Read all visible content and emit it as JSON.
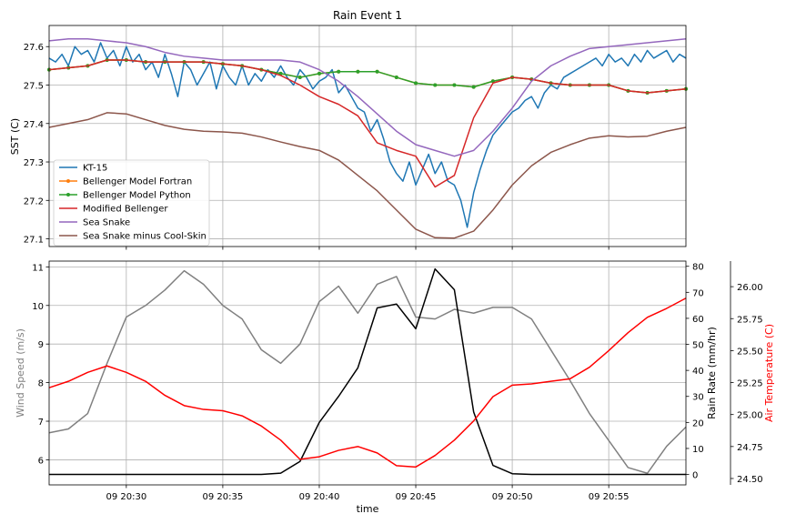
{
  "chart_data": [
    {
      "type": "line",
      "title": "Rain Event 1",
      "xlabel": "",
      "ylabel": "SST (C)",
      "xlim": [
        "20:26:00",
        "20:59:00"
      ],
      "ylim": [
        27.08,
        27.655
      ],
      "xticks": [
        "09 20:30",
        "09 20:35",
        "09 20:40",
        "09 20:45",
        "09 20:50",
        "09 20:55"
      ],
      "yticks": [
        "27.1",
        "27.2",
        "27.3",
        "27.4",
        "27.5",
        "27.6"
      ],
      "grid": true,
      "legend": "lower-left",
      "series": [
        {
          "name": "KT-15",
          "color": "#1f77b4",
          "x": [
            "20:26:00",
            "20:26:20",
            "20:26:40",
            "20:27:00",
            "20:27:20",
            "20:27:40",
            "20:28:00",
            "20:28:20",
            "20:28:40",
            "20:29:00",
            "20:29:20",
            "20:29:40",
            "20:30:00",
            "20:30:20",
            "20:30:40",
            "20:31:00",
            "20:31:20",
            "20:31:40",
            "20:32:00",
            "20:32:20",
            "20:32:40",
            "20:33:00",
            "20:33:20",
            "20:33:40",
            "20:34:00",
            "20:34:20",
            "20:34:40",
            "20:35:00",
            "20:35:20",
            "20:35:40",
            "20:36:00",
            "20:36:20",
            "20:36:40",
            "20:37:00",
            "20:37:20",
            "20:37:40",
            "20:38:00",
            "20:38:20",
            "20:38:40",
            "20:39:00",
            "20:39:20",
            "20:39:40",
            "20:40:00",
            "20:40:20",
            "20:40:40",
            "20:41:00",
            "20:41:20",
            "20:41:40",
            "20:42:00",
            "20:42:20",
            "20:42:40",
            "20:43:00",
            "20:43:20",
            "20:43:40",
            "20:44:00",
            "20:44:20",
            "20:44:40",
            "20:45:00",
            "20:45:20",
            "20:45:40",
            "20:46:00",
            "20:46:20",
            "20:46:40",
            "20:47:00",
            "20:47:20",
            "20:47:40",
            "20:48:00",
            "20:48:20",
            "20:48:40",
            "20:49:00",
            "20:49:20",
            "20:49:40",
            "20:50:00",
            "20:50:20",
            "20:50:40",
            "20:51:00",
            "20:51:20",
            "20:51:40",
            "20:52:00",
            "20:52:20",
            "20:52:40",
            "20:53:00",
            "20:53:20",
            "20:53:40",
            "20:54:00",
            "20:54:20",
            "20:54:40",
            "20:55:00",
            "20:55:20",
            "20:55:40",
            "20:56:00",
            "20:56:20",
            "20:56:40",
            "20:57:00",
            "20:57:20",
            "20:57:40",
            "20:58:00",
            "20:58:20",
            "20:58:40",
            "20:59:00"
          ],
          "values": [
            27.57,
            27.56,
            27.58,
            27.55,
            27.6,
            27.58,
            27.59,
            27.56,
            27.61,
            27.57,
            27.59,
            27.55,
            27.6,
            27.56,
            27.58,
            27.54,
            27.56,
            27.52,
            27.58,
            27.53,
            27.47,
            27.56,
            27.54,
            27.5,
            27.53,
            27.56,
            27.49,
            27.55,
            27.52,
            27.5,
            27.55,
            27.5,
            27.53,
            27.51,
            27.54,
            27.52,
            27.55,
            27.52,
            27.5,
            27.54,
            27.52,
            27.49,
            27.51,
            27.52,
            27.54,
            27.48,
            27.5,
            27.47,
            27.44,
            27.43,
            27.38,
            27.41,
            27.36,
            27.3,
            27.27,
            27.25,
            27.3,
            27.24,
            27.28,
            27.32,
            27.27,
            27.3,
            27.25,
            27.24,
            27.2,
            27.13,
            27.22,
            27.28,
            27.33,
            27.37,
            27.39,
            27.41,
            27.43,
            27.44,
            27.46,
            27.47,
            27.44,
            27.48,
            27.5,
            27.49,
            27.52,
            27.53,
            27.54,
            27.55,
            27.56,
            27.57,
            27.55,
            27.58,
            27.56,
            27.57,
            27.55,
            27.58,
            27.56,
            27.59,
            27.57,
            27.58,
            27.59,
            27.56,
            27.58,
            27.57
          ],
          "marker": false
        },
        {
          "name": "Bellenger Model Fortran",
          "color": "#ff7f0e",
          "x": [
            "20:26:00",
            "20:27:00",
            "20:28:00",
            "20:29:00",
            "20:30:00",
            "20:31:00",
            "20:32:00",
            "20:33:00",
            "20:34:00",
            "20:35:00",
            "20:36:00",
            "20:37:00",
            "20:38:00",
            "20:39:00",
            "20:40:00",
            "20:41:00",
            "20:42:00",
            "20:43:00",
            "20:44:00",
            "20:45:00",
            "20:46:00",
            "20:47:00",
            "20:48:00",
            "20:49:00",
            "20:50:00",
            "20:51:00",
            "20:52:00",
            "20:53:00",
            "20:54:00",
            "20:55:00",
            "20:56:00",
            "20:57:00",
            "20:58:00",
            "20:59:00"
          ],
          "values": [
            27.54,
            27.545,
            27.55,
            27.565,
            27.565,
            27.56,
            27.56,
            27.56,
            27.56,
            27.555,
            27.55,
            27.54,
            27.53,
            27.52,
            27.53,
            27.535,
            27.535,
            27.535,
            27.52,
            27.505,
            27.5,
            27.5,
            27.495,
            27.51,
            27.52,
            27.515,
            27.505,
            27.5,
            27.5,
            27.5,
            27.485,
            27.48,
            27.485,
            27.49
          ],
          "marker": true
        },
        {
          "name": "Bellenger Model Python",
          "color": "#2ca02c",
          "x": [
            "20:26:00",
            "20:27:00",
            "20:28:00",
            "20:29:00",
            "20:30:00",
            "20:31:00",
            "20:32:00",
            "20:33:00",
            "20:34:00",
            "20:35:00",
            "20:36:00",
            "20:37:00",
            "20:38:00",
            "20:39:00",
            "20:40:00",
            "20:41:00",
            "20:42:00",
            "20:43:00",
            "20:44:00",
            "20:45:00",
            "20:46:00",
            "20:47:00",
            "20:48:00",
            "20:49:00",
            "20:50:00",
            "20:51:00",
            "20:52:00",
            "20:53:00",
            "20:54:00",
            "20:55:00",
            "20:56:00",
            "20:57:00",
            "20:58:00",
            "20:59:00"
          ],
          "values": [
            27.54,
            27.545,
            27.55,
            27.565,
            27.565,
            27.56,
            27.56,
            27.56,
            27.56,
            27.555,
            27.55,
            27.54,
            27.53,
            27.52,
            27.53,
            27.535,
            27.535,
            27.535,
            27.52,
            27.505,
            27.5,
            27.5,
            27.495,
            27.51,
            27.52,
            27.515,
            27.505,
            27.5,
            27.5,
            27.5,
            27.485,
            27.48,
            27.485,
            27.49
          ],
          "marker": true
        },
        {
          "name": "Modified Bellenger",
          "color": "#d62728",
          "x": [
            "20:26:00",
            "20:27:00",
            "20:28:00",
            "20:29:00",
            "20:30:00",
            "20:31:00",
            "20:32:00",
            "20:33:00",
            "20:34:00",
            "20:35:00",
            "20:36:00",
            "20:37:00",
            "20:38:00",
            "20:39:00",
            "20:40:00",
            "20:41:00",
            "20:42:00",
            "20:43:00",
            "20:44:00",
            "20:45:00",
            "20:46:00",
            "20:47:00",
            "20:48:00",
            "20:49:00",
            "20:50:00",
            "20:51:00",
            "20:52:00",
            "20:53:00",
            "20:54:00",
            "20:55:00",
            "20:56:00",
            "20:57:00",
            "20:58:00",
            "20:59:00"
          ],
          "values": [
            27.54,
            27.545,
            27.55,
            27.565,
            27.565,
            27.56,
            27.56,
            27.56,
            27.56,
            27.555,
            27.55,
            27.54,
            27.525,
            27.5,
            27.47,
            27.45,
            27.42,
            27.35,
            27.33,
            27.315,
            27.235,
            27.265,
            27.415,
            27.505,
            27.52,
            27.515,
            27.505,
            27.5,
            27.5,
            27.5,
            27.485,
            27.48,
            27.485,
            27.49
          ],
          "marker": false
        },
        {
          "name": "Sea Snake",
          "color": "#9467bd",
          "x": [
            "20:26:00",
            "20:27:00",
            "20:28:00",
            "20:29:00",
            "20:30:00",
            "20:31:00",
            "20:32:00",
            "20:33:00",
            "20:34:00",
            "20:35:00",
            "20:36:00",
            "20:37:00",
            "20:38:00",
            "20:39:00",
            "20:40:00",
            "20:41:00",
            "20:42:00",
            "20:43:00",
            "20:44:00",
            "20:45:00",
            "20:46:00",
            "20:47:00",
            "20:48:00",
            "20:49:00",
            "20:50:00",
            "20:51:00",
            "20:52:00",
            "20:53:00",
            "20:54:00",
            "20:55:00",
            "20:56:00",
            "20:57:00",
            "20:58:00",
            "20:59:00"
          ],
          "values": [
            27.615,
            27.62,
            27.62,
            27.615,
            27.61,
            27.6,
            27.585,
            27.575,
            27.57,
            27.565,
            27.565,
            27.565,
            27.565,
            27.56,
            27.54,
            27.51,
            27.47,
            27.425,
            27.38,
            27.345,
            27.33,
            27.315,
            27.33,
            27.38,
            27.44,
            27.51,
            27.55,
            27.575,
            27.595,
            27.6,
            27.605,
            27.61,
            27.615,
            27.62
          ],
          "marker": false
        },
        {
          "name": "Sea Snake minus Cool-Skin",
          "color": "#8c564b",
          "x": [
            "20:26:00",
            "20:27:00",
            "20:28:00",
            "20:29:00",
            "20:30:00",
            "20:31:00",
            "20:32:00",
            "20:33:00",
            "20:34:00",
            "20:35:00",
            "20:36:00",
            "20:37:00",
            "20:38:00",
            "20:39:00",
            "20:40:00",
            "20:41:00",
            "20:42:00",
            "20:43:00",
            "20:44:00",
            "20:45:00",
            "20:46:00",
            "20:47:00",
            "20:48:00",
            "20:49:00",
            "20:50:00",
            "20:51:00",
            "20:52:00",
            "20:53:00",
            "20:54:00",
            "20:55:00",
            "20:56:00",
            "20:57:00",
            "20:58:00",
            "20:59:00"
          ],
          "values": [
            27.39,
            27.4,
            27.41,
            27.428,
            27.425,
            27.41,
            27.395,
            27.385,
            27.38,
            27.378,
            27.375,
            27.365,
            27.352,
            27.34,
            27.33,
            27.305,
            27.265,
            27.225,
            27.175,
            27.125,
            27.103,
            27.102,
            27.12,
            27.175,
            27.24,
            27.29,
            27.325,
            27.345,
            27.362,
            27.368,
            27.365,
            27.367,
            27.38,
            27.39
          ],
          "marker": false
        }
      ]
    },
    {
      "type": "line",
      "title": "",
      "xlabel": "time",
      "xlim": [
        "20:26:00",
        "20:59:00"
      ],
      "xticks": [
        "09 20:30",
        "09 20:35",
        "09 20:40",
        "09 20:45",
        "09 20:50",
        "09 20:55"
      ],
      "grid": true,
      "axes": [
        {
          "ylabel": "Wind Speed (m/s)",
          "color": "#808080",
          "side": "left",
          "ylim": [
            5.35,
            11.15
          ],
          "yticks": [
            "6",
            "7",
            "8",
            "9",
            "10",
            "11"
          ],
          "series": {
            "name": "Wind Speed (m/s)",
            "x": [
              "20:26:00",
              "20:27:00",
              "20:28:00",
              "20:29:00",
              "20:30:00",
              "20:31:00",
              "20:32:00",
              "20:33:00",
              "20:34:00",
              "20:35:00",
              "20:36:00",
              "20:37:00",
              "20:38:00",
              "20:39:00",
              "20:40:00",
              "20:41:00",
              "20:42:00",
              "20:43:00",
              "20:44:00",
              "20:45:00",
              "20:46:00",
              "20:47:00",
              "20:48:00",
              "20:49:00",
              "20:50:00",
              "20:51:00",
              "20:52:00",
              "20:53:00",
              "20:54:00",
              "20:55:00",
              "20:56:00",
              "20:57:00",
              "20:58:00",
              "20:59:00"
            ],
            "values": [
              6.7,
              6.8,
              7.2,
              8.5,
              9.7,
              10.0,
              10.4,
              10.9,
              10.55,
              10.0,
              9.65,
              8.85,
              8.5,
              9.0,
              10.1,
              10.5,
              9.8,
              10.55,
              10.75,
              9.7,
              9.65,
              9.9,
              9.8,
              9.95,
              9.95,
              9.65,
              8.85,
              8.05,
              7.2,
              6.5,
              5.8,
              5.65,
              6.35,
              6.85
            ]
          }
        },
        {
          "ylabel": "Rain Rate (mm/hr)",
          "color": "#000000",
          "side": "right",
          "ylim": [
            -4,
            82
          ],
          "yticks": [
            "0",
            "10",
            "20",
            "30",
            "40",
            "50",
            "60",
            "70",
            "80"
          ],
          "series": {
            "name": "Rain Rate (mm/hr)",
            "x": [
              "20:26:00",
              "20:27:00",
              "20:28:00",
              "20:29:00",
              "20:30:00",
              "20:31:00",
              "20:32:00",
              "20:33:00",
              "20:34:00",
              "20:35:00",
              "20:36:00",
              "20:37:00",
              "20:38:00",
              "20:39:00",
              "20:40:00",
              "20:41:00",
              "20:42:00",
              "20:43:00",
              "20:44:00",
              "20:45:00",
              "20:46:00",
              "20:47:00",
              "20:48:00",
              "20:49:00",
              "20:50:00",
              "20:51:00",
              "20:52:00",
              "20:53:00",
              "20:54:00",
              "20:55:00",
              "20:56:00",
              "20:57:00",
              "20:58:00",
              "20:59:00"
            ],
            "values": [
              0,
              0,
              0,
              0,
              0,
              0,
              0,
              0,
              0,
              0,
              0,
              0,
              0.5,
              5,
              20,
              30,
              41,
              64,
              65.5,
              56,
              79,
              71,
              24,
              3.5,
              0.3,
              0,
              0,
              0,
              0,
              0,
              0,
              0,
              0,
              0
            ]
          }
        },
        {
          "ylabel": "Air Temperature (C)",
          "color": "#ff0000",
          "side": "right-outer",
          "ylim": [
            24.45,
            26.2
          ],
          "yticks": [
            "24.50",
            "24.75",
            "25.00",
            "25.25",
            "25.50",
            "25.75",
            "26.00"
          ],
          "series": {
            "name": "Air Temperature (C)",
            "x": [
              "20:26:00",
              "20:27:00",
              "20:28:00",
              "20:29:00",
              "20:30:00",
              "20:31:00",
              "20:32:00",
              "20:33:00",
              "20:34:00",
              "20:35:00",
              "20:36:00",
              "20:37:00",
              "20:38:00",
              "20:39:00",
              "20:40:00",
              "20:41:00",
              "20:42:00",
              "20:43:00",
              "20:44:00",
              "20:45:00",
              "20:46:00",
              "20:47:00",
              "20:48:00",
              "20:49:00",
              "20:50:00",
              "20:51:00",
              "20:52:00",
              "20:53:00",
              "20:54:00",
              "20:55:00",
              "20:56:00",
              "20:57:00",
              "20:58:00",
              "20:59:00"
            ],
            "values": [
              25.21,
              25.26,
              25.33,
              25.38,
              25.33,
              25.26,
              25.15,
              25.07,
              25.04,
              25.03,
              24.99,
              24.91,
              24.8,
              24.65,
              24.67,
              24.72,
              24.75,
              24.7,
              24.6,
              24.59,
              24.68,
              24.8,
              24.95,
              25.14,
              25.23,
              25.24,
              25.26,
              25.28,
              25.37,
              25.5,
              25.64,
              25.76,
              25.83,
              25.91
            ]
          }
        }
      ]
    }
  ]
}
